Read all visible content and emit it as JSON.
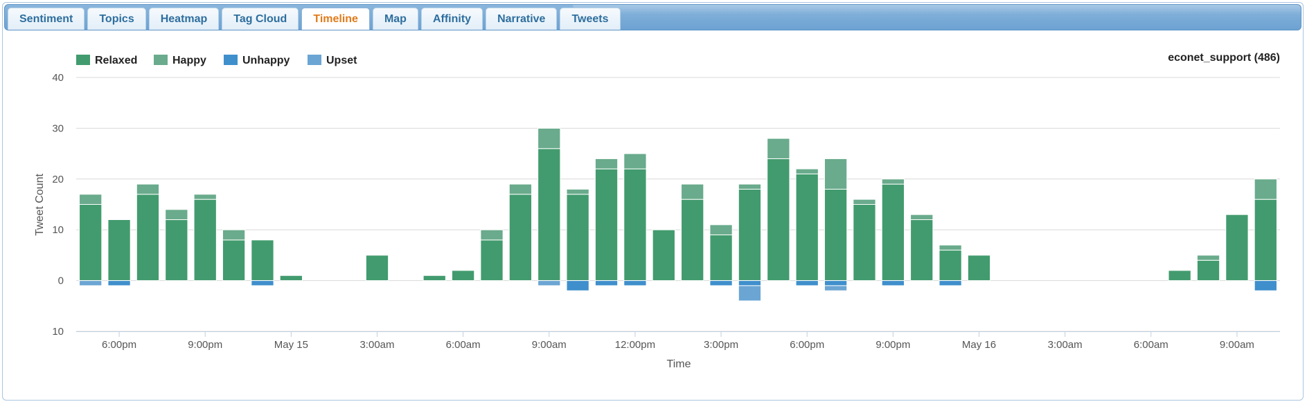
{
  "tabs": [
    {
      "label": "Sentiment",
      "active": false
    },
    {
      "label": "Topics",
      "active": false
    },
    {
      "label": "Heatmap",
      "active": false
    },
    {
      "label": "Tag Cloud",
      "active": false
    },
    {
      "label": "Timeline",
      "active": true
    },
    {
      "label": "Map",
      "active": false
    },
    {
      "label": "Affinity",
      "active": false
    },
    {
      "label": "Narrative",
      "active": false
    },
    {
      "label": "Tweets",
      "active": false
    }
  ],
  "chart_header": {
    "account": "econet_support (486)"
  },
  "chart_data": {
    "type": "bar",
    "stacked": true,
    "xlabel": "Time",
    "ylabel": "Tweet Count",
    "ylim": [
      -10,
      40
    ],
    "yticks": [
      40,
      30,
      20,
      10,
      0,
      -10
    ],
    "ytick_labels": [
      "40",
      "30",
      "20",
      "10",
      "0",
      "10"
    ],
    "x_tick_labels": [
      "6:00pm",
      "9:00pm",
      "May 15",
      "3:00am",
      "6:00am",
      "9:00am",
      "12:00pm",
      "3:00pm",
      "6:00pm",
      "9:00pm",
      "May 16",
      "3:00am",
      "6:00am",
      "9:00am"
    ],
    "x_tick_slots": [
      1.5,
      4.5,
      7.5,
      10.5,
      13.5,
      16.5,
      19.5,
      22.5,
      25.5,
      28.5,
      31.5,
      34.5,
      37.5,
      40.5
    ],
    "slots": 42,
    "legend": [
      {
        "name": "Relaxed",
        "color": "#429b6e"
      },
      {
        "name": "Happy",
        "color": "#69ab8c"
      },
      {
        "name": "Unhappy",
        "color": "#3f8fcc"
      },
      {
        "name": "Upset",
        "color": "#6ba5d3"
      }
    ],
    "series": [
      {
        "name": "Relaxed",
        "color": "#429b6e",
        "values": [
          15,
          12,
          17,
          12,
          16,
          8,
          8,
          1,
          0,
          0,
          5,
          0,
          1,
          2,
          8,
          17,
          26,
          17,
          22,
          22,
          10,
          16,
          9,
          18,
          24,
          21,
          18,
          15,
          19,
          12,
          6,
          5,
          0,
          0,
          0,
          0,
          0,
          0,
          2,
          4,
          13,
          16
        ]
      },
      {
        "name": "Happy",
        "color": "#69ab8c",
        "values": [
          2,
          0,
          2,
          2,
          1,
          2,
          0,
          0,
          0,
          0,
          0,
          0,
          0,
          0,
          2,
          2,
          4,
          1,
          2,
          3,
          0,
          3,
          2,
          1,
          4,
          1,
          6,
          1,
          1,
          1,
          1,
          0,
          0,
          0,
          0,
          0,
          0,
          0,
          0,
          1,
          0,
          4
        ]
      },
      {
        "name": "Unhappy",
        "color": "#3f8fcc",
        "values": [
          0,
          -1,
          0,
          0,
          0,
          0,
          -1,
          0,
          0,
          0,
          0,
          0,
          0,
          0,
          0,
          0,
          0,
          -2,
          -1,
          -1,
          0,
          0,
          -1,
          -1,
          0,
          -1,
          -1,
          0,
          -1,
          0,
          -1,
          0,
          0,
          0,
          0,
          0,
          0,
          0,
          0,
          0,
          0,
          -2
        ]
      },
      {
        "name": "Upset",
        "color": "#6ba5d3",
        "values": [
          -1,
          0,
          0,
          0,
          0,
          0,
          0,
          0,
          0,
          0,
          0,
          0,
          0,
          0,
          0,
          0,
          -1,
          0,
          0,
          0,
          0,
          0,
          0,
          -3,
          0,
          0,
          -1,
          0,
          0,
          0,
          0,
          0,
          0,
          0,
          0,
          0,
          0,
          0,
          0,
          0,
          0,
          0
        ]
      }
    ]
  }
}
